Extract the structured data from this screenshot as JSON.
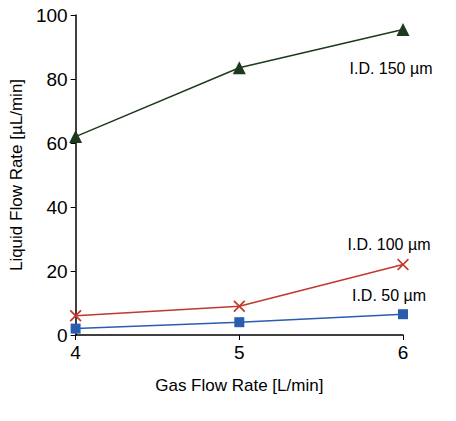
{
  "chart_data": {
    "type": "line",
    "xlabel": "Gas Flow Rate [L/min]",
    "ylabel": "Liquid Flow Rate [µL/min]",
    "x": [
      4,
      5,
      6
    ],
    "xlim": [
      4,
      6
    ],
    "xticks": [
      4,
      5,
      6
    ],
    "ylim": [
      0,
      100
    ],
    "yticks": [
      0,
      20,
      40,
      60,
      80,
      100
    ],
    "grid": false,
    "series": [
      {
        "name": "I.D. 150 µm",
        "color": "#1e3a1e",
        "marker": "triangle",
        "values": [
          62,
          83.5,
          95.5
        ]
      },
      {
        "name": "I.D. 100 µm",
        "color": "#c0392b",
        "marker": "x",
        "values": [
          6,
          9,
          22
        ]
      },
      {
        "name": "I.D. 50 µm",
        "color": "#2a5db0",
        "marker": "square",
        "values": [
          2,
          4,
          6.5
        ]
      }
    ]
  }
}
